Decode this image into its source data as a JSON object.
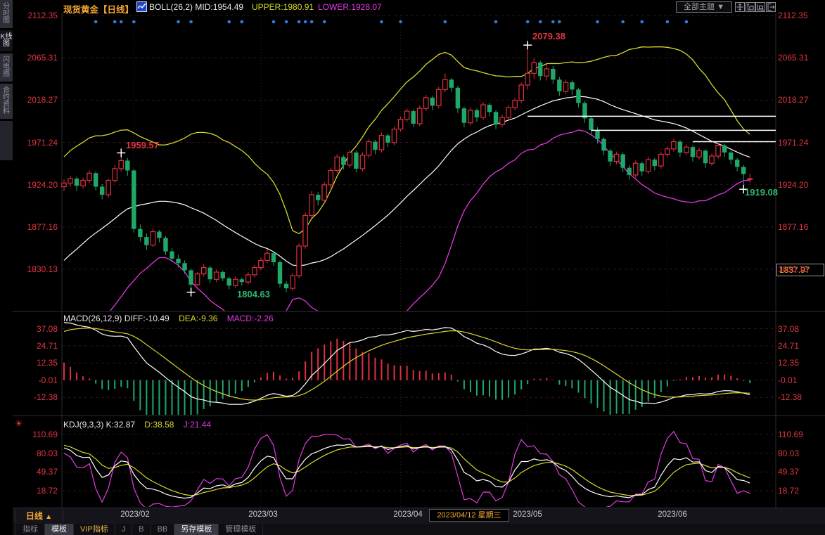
{
  "header": {
    "title": "现货黄金【日线】",
    "boll": "BOLL(26,2) MID:1954.49",
    "upper": "UPPER:1980.91",
    "lower": "LOWER:1928.07"
  },
  "topbar": {
    "theme_label": "全部主题",
    "tool_icons": [
      "pan-tool",
      "y-scale",
      "x-scale",
      "exit"
    ]
  },
  "icons": {
    "dropdown_caret": "▼",
    "triangle_up": "▲",
    "sun": "☀"
  },
  "sidebar": {
    "tabs": [
      {
        "label": "分时图",
        "active": false
      },
      {
        "label": "K线图",
        "active": true
      },
      {
        "label": "闪电图",
        "active": false
      },
      {
        "label": "合约资料",
        "active": false
      }
    ]
  },
  "macd_panel": {
    "left": "MACD(26,12,9) DIFF:-10.49",
    "dea": "DEA:-9.36",
    "macd": "MACD:-2.26"
  },
  "kdj_panel": {
    "left": "KDJ(9,3,3) K:32.87",
    "d": "D:38.58",
    "j": "J:21.44"
  },
  "annotations": {
    "high_main": "2079.38",
    "high_jan": "1959.57",
    "low_feb": "1804.63",
    "low_jun": "1919.08"
  },
  "price_badge": "1837.97",
  "xaxis": {
    "period_label": "日线",
    "dates": [
      "2023/02",
      "2023/03",
      "2023/04",
      "2023/05",
      "2023/06"
    ],
    "crosshair_date": "2023/04/12 星期三"
  },
  "bottom_tabs": [
    {
      "label": "指标",
      "style": "dim"
    },
    {
      "label": "模板",
      "style": "active"
    },
    {
      "label": "VIP指标",
      "style": "vip"
    },
    {
      "label": "J",
      "style": "dim"
    },
    {
      "label": "B",
      "style": "dim"
    },
    {
      "label": "BB",
      "style": "dim"
    },
    {
      "label": "另存模板",
      "style": "active"
    },
    {
      "label": "管理模板",
      "style": "dim"
    }
  ],
  "colors": {
    "up": "#e0303e",
    "down": "#1fa86a",
    "band_upper": "#d6d92e",
    "band_mid": "#ffffff",
    "band_lower": "#e23ae2",
    "accent_orange": "#f7a833",
    "axis_red": "#e23642",
    "event_dot": "#2e7fd6",
    "text_green": "#2eb872",
    "grid_red": "#391016",
    "grid_gray": "#232329",
    "separator": "#2c2c33"
  },
  "chart_data": {
    "type": "candlestick+indicators",
    "instrument": "现货黄金",
    "period": "日线",
    "axis_prices": [
      2112.35,
      2065.31,
      2018.27,
      1971.24,
      1924.2,
      1877.16,
      1830.13
    ],
    "macd_axis_values": [
      37.08,
      24.71,
      12.35,
      -0.01,
      -12.38
    ],
    "kdj_axis_values": [
      110.69,
      80.03,
      49.37,
      18.72
    ],
    "boll": {
      "period": 26,
      "mult": 2
    },
    "macd": {
      "fast": 12,
      "slow": 26,
      "signal": 9
    },
    "kdj": {
      "n": 9,
      "m1": 3,
      "m2": 3
    },
    "month_tick_indices": [
      11,
      31,
      53,
      73,
      95
    ],
    "event_dot_indices": [
      5,
      8,
      9,
      11,
      18,
      20,
      26,
      28,
      33,
      35,
      37,
      38,
      39,
      41,
      50,
      53,
      60,
      68,
      73,
      75,
      77,
      78,
      84,
      88,
      91,
      95,
      98
    ],
    "trendlines": [
      {
        "price": 2000.3,
        "from_index": 73
      },
      {
        "price": 1984.6,
        "from_index": 83
      },
      {
        "price": 1972.0,
        "from_index": 99
      }
    ],
    "markers": [
      {
        "index": 9,
        "price": 1959.57,
        "type": "high"
      },
      {
        "index": 20,
        "price": 1804.63,
        "type": "low"
      },
      {
        "index": 73,
        "price": 2079.38,
        "type": "high"
      },
      {
        "index": 107,
        "price": 1919.08,
        "type": "low"
      }
    ],
    "candles": [
      [
        1922,
        1930,
        1917,
        1926
      ],
      [
        1926,
        1934,
        1922,
        1931
      ],
      [
        1931,
        1933,
        1917,
        1923
      ],
      [
        1923,
        1932,
        1920,
        1929
      ],
      [
        1929,
        1940,
        1926,
        1937
      ],
      [
        1937,
        1939,
        1918,
        1922
      ],
      [
        1922,
        1925,
        1908,
        1913
      ],
      [
        1913,
        1931,
        1910,
        1929
      ],
      [
        1929,
        1946,
        1926,
        1942
      ],
      [
        1942,
        1959.57,
        1939,
        1951
      ],
      [
        1951,
        1954,
        1934,
        1940
      ],
      [
        1940,
        1942,
        1871,
        1875
      ],
      [
        1875,
        1880,
        1861,
        1866
      ],
      [
        1866,
        1870,
        1852,
        1857
      ],
      [
        1857,
        1875,
        1855,
        1872
      ],
      [
        1872,
        1874,
        1860,
        1865
      ],
      [
        1865,
        1867,
        1846,
        1850
      ],
      [
        1850,
        1854,
        1838,
        1842
      ],
      [
        1842,
        1846,
        1832,
        1837
      ],
      [
        1837,
        1840,
        1825,
        1829
      ],
      [
        1829,
        1831,
        1804.63,
        1813
      ],
      [
        1813,
        1827,
        1811,
        1825
      ],
      [
        1825,
        1836,
        1822,
        1832
      ],
      [
        1832,
        1834,
        1815,
        1819
      ],
      [
        1819,
        1830,
        1816,
        1827
      ],
      [
        1827,
        1829,
        1817,
        1820
      ],
      [
        1820,
        1822,
        1808,
        1812
      ],
      [
        1812,
        1822,
        1809,
        1819
      ],
      [
        1819,
        1821,
        1812,
        1816
      ],
      [
        1816,
        1827,
        1813,
        1824
      ],
      [
        1824,
        1835,
        1821,
        1832
      ],
      [
        1832,
        1843,
        1829,
        1840
      ],
      [
        1840,
        1852,
        1837,
        1848
      ],
      [
        1848,
        1850,
        1834,
        1838
      ],
      [
        1838,
        1840,
        1810,
        1814
      ],
      [
        1814,
        1817,
        1805,
        1809
      ],
      [
        1809,
        1826,
        1806,
        1823
      ],
      [
        1823,
        1859,
        1820,
        1856
      ],
      [
        1856,
        1893,
        1853,
        1890
      ],
      [
        1890,
        1917,
        1887,
        1913
      ],
      [
        1913,
        1916,
        1901,
        1907
      ],
      [
        1907,
        1927,
        1904,
        1924
      ],
      [
        1924,
        1943,
        1921,
        1940
      ],
      [
        1940,
        1958,
        1937,
        1955
      ],
      [
        1955,
        1957,
        1941,
        1946
      ],
      [
        1946,
        1963,
        1943,
        1960
      ],
      [
        1960,
        1962,
        1938,
        1942
      ],
      [
        1942,
        1960,
        1939,
        1957
      ],
      [
        1957,
        1975,
        1954,
        1972
      ],
      [
        1972,
        1974,
        1958,
        1963
      ],
      [
        1963,
        1982,
        1960,
        1979
      ],
      [
        1979,
        1981,
        1966,
        1971
      ],
      [
        1971,
        1989,
        1968,
        1986
      ],
      [
        1986,
        2000,
        1983,
        1997
      ],
      [
        1997,
        2009,
        1994,
        2006
      ],
      [
        2006,
        2008,
        1988,
        1992
      ],
      [
        1992,
        2012,
        1989,
        2009
      ],
      [
        2009,
        2024,
        2006,
        2021
      ],
      [
        2021,
        2023,
        2007,
        2012
      ],
      [
        2012,
        2033,
        2009,
        2030
      ],
      [
        2030,
        2048,
        2027,
        2041
      ],
      [
        2041,
        2043,
        2027,
        2032
      ],
      [
        2032,
        2034,
        2004,
        2009
      ],
      [
        2009,
        2011,
        1988,
        1993
      ],
      [
        1993,
        2010,
        1990,
        2007
      ],
      [
        2007,
        2009,
        1994,
        1999
      ],
      [
        1999,
        2016,
        1996,
        2013
      ],
      [
        2013,
        2015,
        2000,
        2005
      ],
      [
        2005,
        2007,
        1986,
        1991
      ],
      [
        1991,
        2002,
        1988,
        1999
      ],
      [
        1999,
        2013,
        1996,
        2010
      ],
      [
        2010,
        2021,
        2007,
        2018
      ],
      [
        2018,
        2038,
        2015,
        2035
      ],
      [
        2035,
        2079.38,
        2030,
        2048
      ],
      [
        2048,
        2065,
        2042,
        2060
      ],
      [
        2060,
        2062,
        2040,
        2045
      ],
      [
        2045,
        2058,
        2040,
        2053
      ],
      [
        2053,
        2056,
        2036,
        2041
      ],
      [
        2041,
        2044,
        2023,
        2028
      ],
      [
        2028,
        2041,
        2025,
        2038
      ],
      [
        2038,
        2040,
        2024,
        2030
      ],
      [
        2030,
        2032,
        2010,
        2015
      ],
      [
        2015,
        2017,
        1993,
        1998
      ],
      [
        1998,
        2000,
        1980,
        1985
      ],
      [
        1985,
        1988,
        1970,
        1975
      ],
      [
        1975,
        1977,
        1957,
        1962
      ],
      [
        1962,
        1964,
        1945,
        1950
      ],
      [
        1950,
        1961,
        1947,
        1958
      ],
      [
        1958,
        1960,
        1938,
        1943
      ],
      [
        1943,
        1946,
        1930,
        1935
      ],
      [
        1935,
        1951,
        1932,
        1948
      ],
      [
        1948,
        1950,
        1934,
        1939
      ],
      [
        1939,
        1955,
        1936,
        1952
      ],
      [
        1952,
        1954,
        1940,
        1945
      ],
      [
        1945,
        1961,
        1942,
        1958
      ],
      [
        1958,
        1967,
        1955,
        1964
      ],
      [
        1964,
        1975,
        1961,
        1972
      ],
      [
        1972,
        1974,
        1955,
        1960
      ],
      [
        1960,
        1969,
        1957,
        1966
      ],
      [
        1966,
        1968,
        1950,
        1955
      ],
      [
        1955,
        1965,
        1952,
        1962
      ],
      [
        1962,
        1964,
        1943,
        1948
      ],
      [
        1948,
        1959,
        1945,
        1956
      ],
      [
        1956,
        1971,
        1953,
        1968
      ],
      [
        1968,
        1970,
        1955,
        1960
      ],
      [
        1960,
        1962,
        1947,
        1952
      ],
      [
        1952,
        1954,
        1939,
        1944
      ],
      [
        1944,
        1946,
        1919.08,
        1936
      ],
      [
        1930,
        1936,
        1926,
        1931
      ]
    ]
  }
}
